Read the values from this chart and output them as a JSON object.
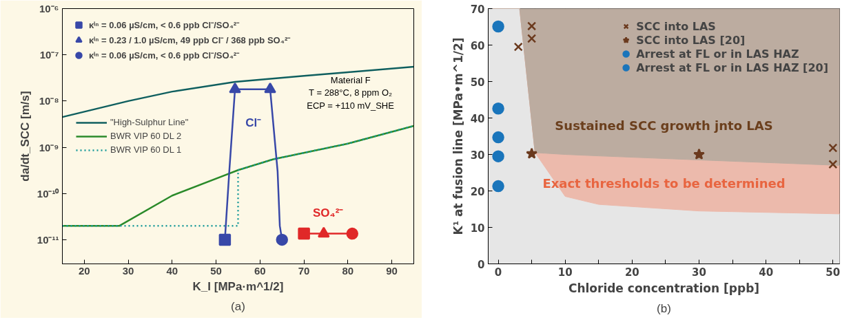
{
  "chart_data": [
    {
      "type": "line",
      "title": "(a)",
      "xlabel": "K_I [MPa·m^1/2]",
      "ylabel": "da/dt_SCC [m/s]",
      "log": "y",
      "grid": false,
      "legend": "top left",
      "xlim": [
        15,
        95
      ],
      "xticks": [
        20,
        30,
        40,
        50,
        60,
        70,
        80,
        90
      ],
      "ylim": [
        3e-12,
        1e-06
      ],
      "yticks": [
        {
          "value": 1e-11,
          "label": "10⁻¹¹"
        },
        {
          "value": 1e-10,
          "label": "10⁻¹⁰"
        },
        {
          "value": 1e-09,
          "label": "10⁻⁹"
        },
        {
          "value": 1e-08,
          "label": "10⁻⁸"
        },
        {
          "value": 1e-07,
          "label": "10⁻⁷"
        },
        {
          "value": 1e-06,
          "label": "10⁻⁶"
        }
      ],
      "series": [
        {
          "name": "\"High-Sulphur Line\"",
          "color": "#0f5f5f",
          "line_style": "solid",
          "x": [
            15,
            30,
            40,
            54.3,
            70,
            80,
            95
          ],
          "values": [
            4.5e-09,
            1e-08,
            1.6e-08,
            2.6e-08,
            3.5e-08,
            4.2e-08,
            5.5e-08
          ]
        },
        {
          "name": "BWR VIP 60 DL 2",
          "color": "#2a8a2a",
          "line_style": "solid",
          "x": [
            15,
            28,
            40,
            55,
            63,
            80,
            95
          ],
          "values": [
            2e-11,
            2e-11,
            9e-11,
            3.2e-10,
            5.5e-10,
            1.2e-09,
            2.9e-09
          ]
        },
        {
          "name": "BWR VIP 60 DL 1",
          "color": "#1a9a9a",
          "line_style": "dotted",
          "x": [
            15,
            55,
            55,
            63,
            80,
            95
          ],
          "values": [
            2e-11,
            2e-11,
            3.2e-10,
            5.5e-10,
            1.2e-09,
            2.9e-09
          ]
        },
        {
          "color": "#3848a8",
          "line_style": "solid",
          "x": [
            52,
            53,
            54.3,
            62.3,
            64,
            64.5,
            65
          ],
          "values": [
            1e-11,
            3e-10,
            1.8e-08,
            1.8e-08,
            3e-10,
            2e-11,
            1e-11
          ]
        },
        {
          "color": "#e02828",
          "line_style": "solid",
          "x": [
            70,
            74.5,
            81
          ],
          "values": [
            1.35e-11,
            1.35e-11,
            1.35e-11
          ]
        },
        {
          "name": "κⁱⁿ = 0.06 µS/cm, < 0.6 ppb Cl⁻/SO₄²⁻",
          "type": "scatter",
          "marker": "square",
          "color": "#3848a8",
          "x": [
            52
          ],
          "values": [
            1e-11
          ]
        },
        {
          "type": "scatter",
          "marker": "square",
          "color": "#e02828",
          "x": [
            70
          ],
          "values": [
            1.35e-11
          ]
        },
        {
          "name": "κⁱⁿ = 0.23 / 1.0 µS/cm, 49 ppb Cl⁻ / 368 ppb SO₄²⁻",
          "type": "scatter",
          "marker": "triangle",
          "color": "#3848a8",
          "x": [
            54.3,
            62.3
          ],
          "values": [
            1.8e-08,
            1.8e-08
          ]
        },
        {
          "type": "scatter",
          "marker": "triangle",
          "color": "#e02828",
          "x": [
            74.5
          ],
          "values": [
            1.35e-11
          ]
        },
        {
          "name": "κⁱⁿ = 0.06 µS/cm, < 0.6 ppb Cl⁻/SO₄²⁻",
          "type": "scatter",
          "marker": "circle",
          "color": "#3848a8",
          "x": [
            65
          ],
          "values": [
            1e-11
          ]
        },
        {
          "type": "scatter",
          "marker": "circle",
          "color": "#e02828",
          "x": [
            81
          ],
          "values": [
            1.35e-11
          ]
        }
      ],
      "annotations": [
        "SO₄²⁻",
        "Cl⁻",
        "Material F",
        "T = 288°C, 8 ppm O₂",
        "ECP = +110 mV_SHE"
      ]
    },
    {
      "type": "scatter",
      "title": "(b)",
      "xlabel": "Chloride concentration [ppb]",
      "ylabel": "K¹ at fusion line [MPa•m^1/2]",
      "grid": false,
      "stacked": true,
      "legend": "top right",
      "xlim": [
        -1.5,
        51
      ],
      "xticks": [
        0,
        {
          "value": 5,
          "label": null
        },
        10,
        {
          "value": 15,
          "label": null
        },
        20,
        {
          "value": 25,
          "label": null
        },
        30,
        {
          "value": 35,
          "label": null
        },
        40,
        {
          "value": 45,
          "label": null
        },
        50
      ],
      "ylim": [
        0,
        70
      ],
      "yticks": [
        0,
        10,
        20,
        30,
        40,
        50,
        60,
        70
      ],
      "series": [
        {
          "type": "area",
          "color": "#e6e6e6",
          "x": [
            -1.5,
            3.2,
            5.5,
            10,
            15,
            30,
            51
          ],
          "values": [
            70,
            70,
            30.5,
            18.5,
            16.3,
            14.5,
            13.7
          ]
        },
        {
          "type": "area",
          "color": "#ecbaac",
          "x": [
            -1.5,
            3.2,
            5.5,
            10,
            15,
            30,
            51
          ],
          "values": [
            0,
            0,
            0,
            11.5,
            13.3,
            14,
            13.3
          ]
        },
        {
          "type": "area",
          "color": "#bcaca0",
          "x": [
            -1.5,
            3.2,
            5.5,
            10,
            15,
            30,
            51
          ],
          "values": [
            0,
            0,
            39.5,
            40,
            40.4,
            41.5,
            43
          ]
        },
        {
          "name": "SCC into LAS",
          "marker": "cross",
          "color": "#6b3a1e",
          "x": [
            3,
            5,
            5,
            50,
            50
          ],
          "values": [
            59.5,
            65.2,
            61.8,
            31.8,
            27.3
          ]
        },
        {
          "name": "SCC into LAS [20]",
          "marker": "star",
          "color": "#6b3a1e",
          "x": [
            5,
            30
          ],
          "values": [
            30.2,
            30.0
          ]
        },
        {
          "name": "Arrest at FL or in LAS HAZ",
          "marker": "circle",
          "color": "#1a75bb",
          "x": [
            0,
            0,
            0
          ],
          "values": [
            42.6,
            34.7,
            21.3
          ]
        },
        {
          "name": "Arrest at FL or in LAS HAZ [20]",
          "marker": "circle",
          "color": "#1a75bb",
          "x": [
            0,
            0
          ],
          "values": [
            65.1,
            29.5
          ]
        }
      ],
      "annotations": [
        "Sustained SCC growth jnto LAS",
        "Exact thresholds to be determined"
      ]
    }
  ]
}
